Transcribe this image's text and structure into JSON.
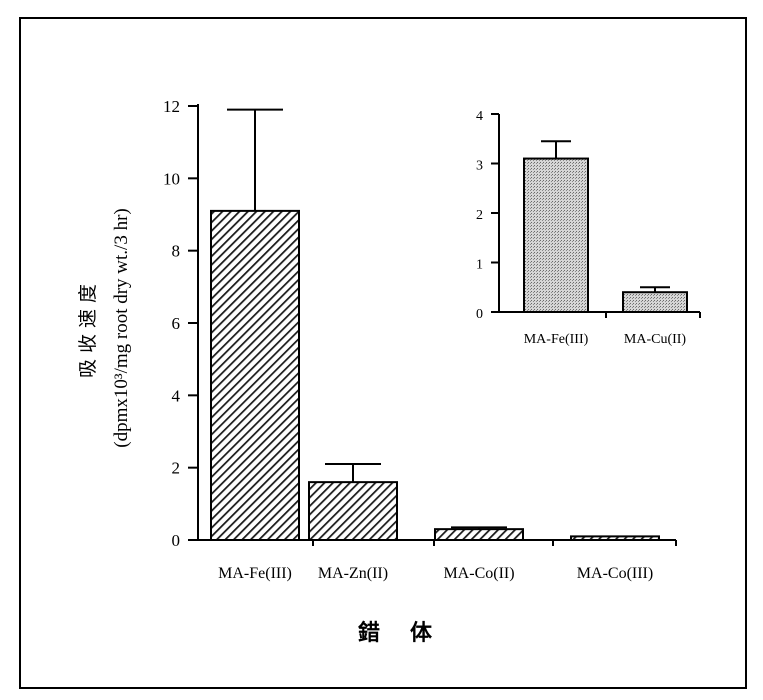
{
  "chart_data": [
    {
      "type": "bar",
      "categories": [
        "MA-Fe(III)",
        "MA-Zn(II)",
        "MA-Co(II)",
        "MA-Co(III)"
      ],
      "values": [
        9.1,
        1.6,
        0.3,
        0.1
      ],
      "errors": [
        2.8,
        0.5,
        0.05,
        0.0
      ],
      "ylim": [
        0,
        12
      ],
      "yticks": [
        "0",
        "2",
        "4",
        "6",
        "8",
        "10",
        "12"
      ],
      "ylabel_line1": "吸收速度",
      "ylabel_line2": "(dpmx10³/mg root dry wt./3 hr)",
      "xlabel": "錯体",
      "pattern": "diagonal-hatch"
    },
    {
      "type": "bar",
      "categories": [
        "MA-Fe(III)",
        "MA-Cu(II)"
      ],
      "values": [
        3.1,
        0.4
      ],
      "errors": [
        0.35,
        0.1
      ],
      "ylim": [
        0,
        4
      ],
      "yticks": [
        "0",
        "1",
        "2",
        "3",
        "4"
      ],
      "pattern": "stipple"
    }
  ]
}
